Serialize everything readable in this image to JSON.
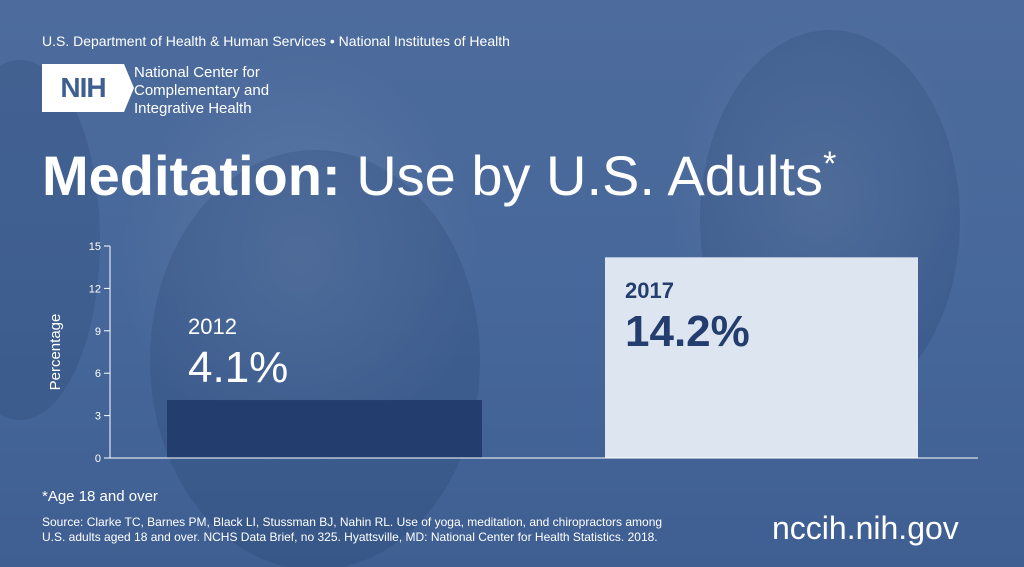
{
  "header": {
    "agencies": "U.S. Department of Health & Human Services • National Institutes of Health",
    "logo_text": "NIH",
    "org_lines": [
      "National Center for",
      "Complementary and",
      "Integrative Health"
    ]
  },
  "chart_data": {
    "type": "bar",
    "title": "Meditation:",
    "title_rest": "Use by U.S. Adults",
    "title_mark": "*",
    "ylabel": "Percentage",
    "xlabel": "",
    "ylim": [
      0,
      15
    ],
    "yticks": [
      0,
      3,
      6,
      9,
      12,
      15
    ],
    "categories": [
      "2012",
      "2017"
    ],
    "values": [
      4.1,
      14.2
    ],
    "value_labels": [
      "4.1%",
      "14.2%"
    ],
    "bar_colors": [
      "#233e6e",
      "#dde5f1"
    ],
    "label_colors": [
      "#ffffff",
      "#233e6e"
    ],
    "grid": false
  },
  "footer": {
    "footnote": "*Age 18 and over",
    "source_lines": [
      "Source: Clarke TC, Barnes PM, Black LI, Stussman BJ, Nahin RL. Use of yoga, meditation, and chiropractors among",
      "U.S. adults aged 18 and over. NCHS Data Brief, no 325. Hyattsville, MD: National Center for Health Statistics. 2018."
    ],
    "url": "nccih.nih.gov"
  }
}
